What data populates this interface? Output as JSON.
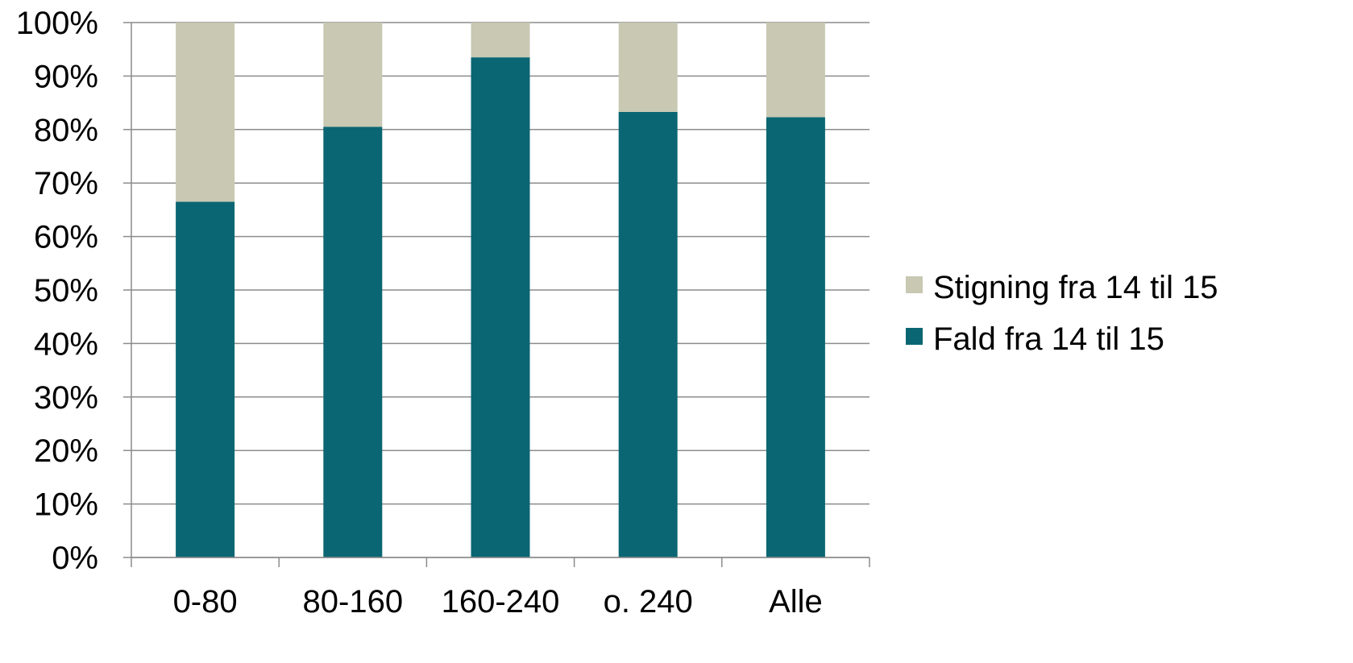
{
  "chart_data": {
    "type": "bar",
    "stacked": true,
    "percent_stacked": true,
    "categories": [
      "0-80",
      "80-160",
      "160-240",
      "o. 240",
      "Alle"
    ],
    "series": [
      {
        "name": "Fald fra 14 til 15",
        "values": [
          66.5,
          80.5,
          93.5,
          83.3,
          82.3
        ],
        "color": "#0a6672"
      },
      {
        "name": "Stigning fra 14 til 15",
        "values": [
          33.5,
          19.5,
          6.5,
          16.7,
          17.7
        ],
        "color": "#c8c8b3"
      }
    ],
    "y_ticks": [
      "0%",
      "10%",
      "20%",
      "30%",
      "40%",
      "50%",
      "60%",
      "70%",
      "80%",
      "90%",
      "100%"
    ],
    "ylim": [
      0,
      100
    ],
    "grid": true,
    "gridline_color": "#8c8c8c",
    "legend_position": "right",
    "legend_order": [
      "Stigning fra 14 til 15",
      "Fald fra 14 til 15"
    ],
    "title": "",
    "xlabel": "",
    "ylabel": ""
  }
}
